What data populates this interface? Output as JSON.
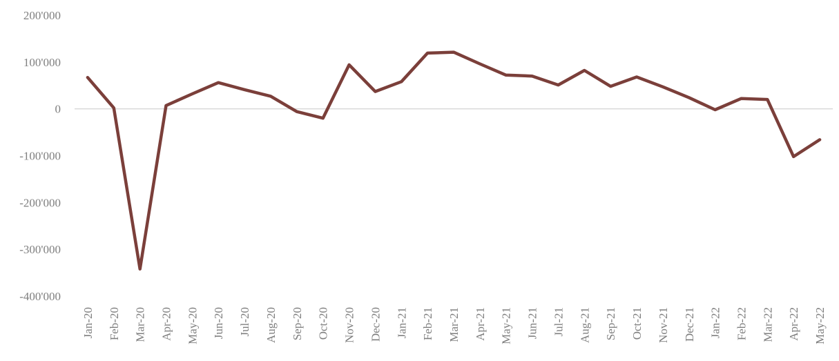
{
  "chart_data": {
    "type": "line",
    "title": "",
    "xlabel": "",
    "ylabel": "",
    "ylim": [
      -400000,
      200000
    ],
    "yticks": [
      200000,
      100000,
      0,
      -100000,
      -200000,
      -300000,
      -400000
    ],
    "ytick_labels": [
      "200'000",
      "100'000",
      "0",
      "-100'000",
      "-200'000",
      "-300'000",
      "-400'000"
    ],
    "grid": false,
    "legend": "none",
    "categories": [
      "Jan-20",
      "Feb-20",
      "Mar-20",
      "Apr-20",
      "May-20",
      "Jun-20",
      "Jul-20",
      "Aug-20",
      "Sep-20",
      "Oct-20",
      "Nov-20",
      "Dec-20",
      "Jan-21",
      "Feb-21",
      "Mar-21",
      "Apr-21",
      "May-21",
      "Jun-21",
      "Jul-21",
      "Aug-21",
      "Sep-21",
      "Oct-21",
      "Nov-21",
      "Dec-21",
      "Jan-22",
      "Feb-22",
      "Mar-22",
      "Apr-22",
      "May-22"
    ],
    "series": [
      {
        "values": [
          67000,
          2000,
          -342000,
          7000,
          32000,
          56000,
          41000,
          27000,
          -6000,
          -20000,
          94000,
          37000,
          58000,
          119000,
          121000,
          96000,
          72000,
          70000,
          51000,
          82000,
          48000,
          68000,
          47000,
          24000,
          -2000,
          22000,
          20000,
          -102000,
          -66000
        ],
        "color": "#7b3f3a"
      }
    ],
    "zero_line_color": "#d9d9d9"
  }
}
